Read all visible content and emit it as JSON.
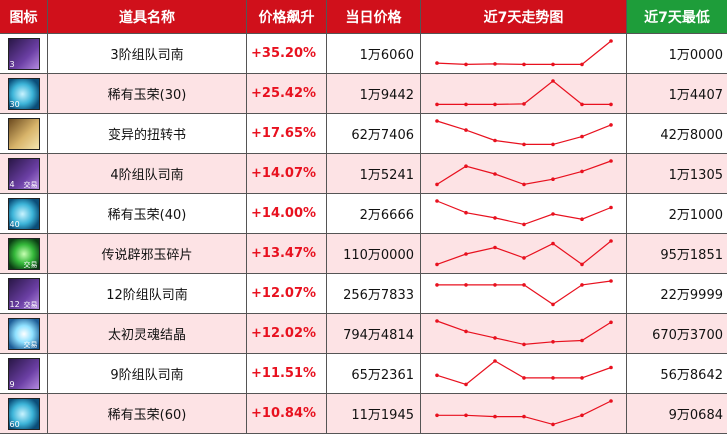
{
  "header": {
    "icon": "图标",
    "name": "道具名称",
    "change": "价格飙升",
    "price": "当日价格",
    "trend": "近7天走势图",
    "min": "近7天最低"
  },
  "colors": {
    "header_red": "#d0101b",
    "header_green": "#1e9d3a",
    "row_pink": "#fde3e5",
    "change_red": "#e8111f",
    "line_red": "#e8111f"
  },
  "rows": [
    {
      "icon": "purple-box-icon",
      "level": "3",
      "trade": "",
      "name": "3阶组队司南",
      "change": "+35.20%",
      "price": "1万6060",
      "min": "1万0000",
      "trend": [
        0.15,
        0.1,
        0.12,
        0.1,
        0.1,
        0.1,
        1.0
      ]
    },
    {
      "icon": "jade-orb-icon",
      "level": "30",
      "trade": "",
      "name": "稀有玉荣(30)",
      "change": "+25.42%",
      "price": "1万9442",
      "min": "1万4407",
      "trend": [
        0.1,
        0.1,
        0.1,
        0.12,
        1.0,
        0.1,
        0.1
      ]
    },
    {
      "icon": "book-icon",
      "level": "",
      "trade": "",
      "name": "变异的扭转书",
      "change": "+17.65%",
      "price": "62万7406",
      "min": "42万8000",
      "trend": [
        1.0,
        0.65,
        0.25,
        0.1,
        0.1,
        0.4,
        0.85
      ]
    },
    {
      "icon": "purple-box-icon",
      "level": "4",
      "trade": "交易",
      "name": "4阶组队司南",
      "change": "+14.07%",
      "price": "1万5241",
      "min": "1万1305",
      "trend": [
        0.1,
        0.8,
        0.5,
        0.1,
        0.3,
        0.6,
        1.0
      ]
    },
    {
      "icon": "jade-orb-icon",
      "level": "40",
      "trade": "",
      "name": "稀有玉荣(40)",
      "change": "+14.00%",
      "price": "2万6666",
      "min": "2万1000",
      "trend": [
        1.0,
        0.55,
        0.35,
        0.1,
        0.5,
        0.3,
        0.75
      ]
    },
    {
      "icon": "green-gem-icon",
      "level": "",
      "trade": "交易",
      "name": "传说辟邪玉碎片",
      "change": "+13.47%",
      "price": "110万0000",
      "min": "95万1851",
      "trend": [
        0.1,
        0.5,
        0.75,
        0.35,
        0.9,
        0.1,
        1.0
      ]
    },
    {
      "icon": "purple-box-icon",
      "level": "12",
      "trade": "交易",
      "name": "12阶组队司南",
      "change": "+12.07%",
      "price": "256万7833",
      "min": "22万9999",
      "trend": [
        0.85,
        0.85,
        0.85,
        0.85,
        0.1,
        0.85,
        1.0
      ]
    },
    {
      "icon": "crystal-icon",
      "level": "",
      "trade": "交易",
      "name": "太初灵魂结晶",
      "change": "+12.02%",
      "price": "794万4814",
      "min": "670万3700",
      "trend": [
        1.0,
        0.6,
        0.35,
        0.1,
        0.2,
        0.25,
        0.95
      ]
    },
    {
      "icon": "purple-box-icon",
      "level": "9",
      "trade": "",
      "name": "9阶组队司南",
      "change": "+11.51%",
      "price": "65万2361",
      "min": "56万8642",
      "trend": [
        0.45,
        0.1,
        1.0,
        0.35,
        0.35,
        0.35,
        0.75
      ]
    },
    {
      "icon": "jade-orb-icon",
      "level": "60",
      "trade": "",
      "name": "稀有玉荣(60)",
      "change": "+10.84%",
      "price": "11万1945",
      "min": "9万0684",
      "trend": [
        0.45,
        0.45,
        0.4,
        0.4,
        0.1,
        0.45,
        1.0
      ]
    }
  ]
}
